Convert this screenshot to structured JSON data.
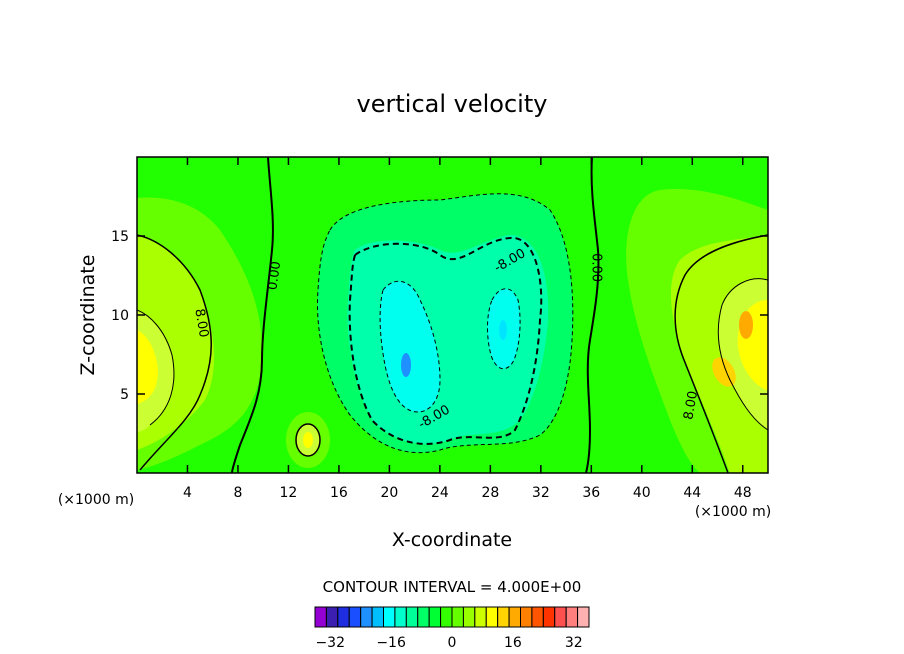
{
  "chart_data": {
    "type": "heatmap",
    "subtype": "filled contour",
    "title": "vertical velocity",
    "xlabel": "X-coordinate",
    "ylabel": "Z-coordinate",
    "x_unit_left": "(×1000 m)",
    "x_unit_right": "(×1000 m)",
    "xlim": [
      0,
      50
    ],
    "ylim": [
      0,
      20
    ],
    "x_ticks": [
      4,
      8,
      12,
      16,
      20,
      24,
      28,
      32,
      36,
      40,
      44,
      48
    ],
    "y_ticks": [
      5,
      10,
      15
    ],
    "contour_labels": [
      {
        "text": "0.00",
        "x": 10.8,
        "z": 12.5
      },
      {
        "text": "0.00",
        "x": 36.5,
        "z": 13.0
      },
      {
        "text": "8.00",
        "x": 5.2,
        "z": 9.5
      },
      {
        "text": "8.00",
        "x": 43.8,
        "z": 4.3
      },
      {
        "text": "-8.00",
        "x": 29.5,
        "z": 13.5
      },
      {
        "text": "-8.00",
        "x": 23.5,
        "z": 3.6
      }
    ],
    "contour_interval_text": "CONTOUR INTERVAL =  4.000E+00",
    "contour_interval": 4.0,
    "colorbar": {
      "min": -36,
      "max": 36,
      "step": 4,
      "tick_values": [
        -32,
        -16,
        0,
        16,
        32
      ],
      "tick_labels": [
        "−32",
        "−16",
        "0",
        "16",
        "32"
      ],
      "colors": [
        "#9400d3",
        "#3a1fb0",
        "#1e2de0",
        "#1a4fff",
        "#1e90ff",
        "#00bfff",
        "#00ffff",
        "#00ffcc",
        "#00ff99",
        "#00ff66",
        "#00ff33",
        "#33ff00",
        "#66ff00",
        "#99ff00",
        "#ccff00",
        "#ffff00",
        "#ffd400",
        "#ffaa00",
        "#ff7f00",
        "#ff5500",
        "#ff3300",
        "#ff5050",
        "#ff7f7f",
        "#ffb0b0"
      ]
    },
    "features": [
      {
        "kind": "downdraft",
        "x": 21.8,
        "z": 6.8,
        "peak": -14
      },
      {
        "kind": "downdraft",
        "x": 29.8,
        "z": 9.5,
        "peak": -12
      },
      {
        "kind": "updraft",
        "x": 1.5,
        "z": 7.8,
        "peak": 12
      },
      {
        "kind": "updraft",
        "x": 49.3,
        "z": 9.5,
        "peak": 14
      },
      {
        "kind": "updraft",
        "x": 47.2,
        "z": 6.0,
        "peak": 13
      },
      {
        "kind": "updraft",
        "x": 13.8,
        "z": 2.0,
        "peak": 10
      },
      {
        "kind": "updraft",
        "x": 3.5,
        "z": 6.5,
        "peak": 10
      }
    ]
  }
}
